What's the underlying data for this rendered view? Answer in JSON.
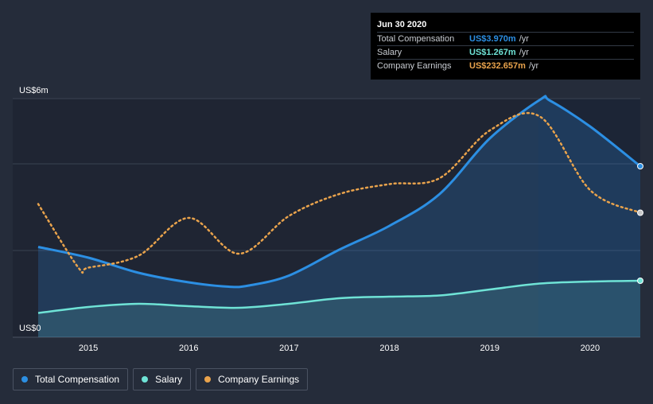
{
  "chart_data": {
    "type": "line",
    "x_ticks": [
      "2015",
      "2016",
      "2017",
      "2018",
      "2019",
      "2020"
    ],
    "y_labels": [
      "US$6m",
      "US$0"
    ],
    "ylim": [
      0,
      6
    ],
    "xlim": [
      2014.5,
      2020.5
    ],
    "grid": true,
    "series": [
      {
        "name": "Total Compensation",
        "color": "#2c8fe3",
        "x": [
          2014.5,
          2015.0,
          2015.5,
          2016.0,
          2016.4,
          2016.6,
          2017.0,
          2017.5,
          2018.0,
          2018.5,
          2019.0,
          2019.5,
          2019.6,
          2020.0,
          2020.5
        ],
        "values": [
          2.27,
          2.0,
          1.62,
          1.38,
          1.27,
          1.3,
          1.55,
          2.2,
          2.8,
          3.6,
          5.0,
          5.97,
          5.95,
          5.3,
          4.3
        ]
      },
      {
        "name": "Salary",
        "color": "#6fe3d6",
        "x": [
          2014.5,
          2015.0,
          2015.5,
          2016.0,
          2016.5,
          2017.0,
          2017.5,
          2018.0,
          2018.5,
          2019.0,
          2019.5,
          2020.0,
          2020.5
        ],
        "values": [
          0.61,
          0.76,
          0.84,
          0.78,
          0.74,
          0.84,
          0.98,
          1.02,
          1.05,
          1.2,
          1.35,
          1.4,
          1.42
        ]
      },
      {
        "name": "Company Earnings",
        "color": "#e9a34c",
        "x": [
          2014.5,
          2014.9,
          2015.0,
          2015.5,
          2016.0,
          2016.5,
          2017.0,
          2017.5,
          2018.0,
          2018.5,
          2019.0,
          2019.5,
          2020.0,
          2020.5
        ],
        "values": [
          3.35,
          1.75,
          1.75,
          2.05,
          3.0,
          2.1,
          3.05,
          3.6,
          3.85,
          4.0,
          5.2,
          5.55,
          3.7,
          3.13
        ]
      }
    ]
  },
  "tooltip": {
    "date": "Jun 30 2020",
    "rows": [
      {
        "label": "Total Compensation",
        "value": "US$3.970m",
        "unit": "/yr",
        "color": "#2c8fe3"
      },
      {
        "label": "Salary",
        "value": "US$1.267m",
        "unit": "/yr",
        "color": "#6fe3d6"
      },
      {
        "label": "Company Earnings",
        "value": "US$232.657m",
        "unit": "/yr",
        "color": "#e9a34c"
      }
    ]
  },
  "legend": {
    "items": [
      {
        "label": "Total Compensation",
        "color": "#2c8fe3"
      },
      {
        "label": "Salary",
        "color": "#6fe3d6"
      },
      {
        "label": "Company Earnings",
        "color": "#e9a34c"
      }
    ]
  }
}
